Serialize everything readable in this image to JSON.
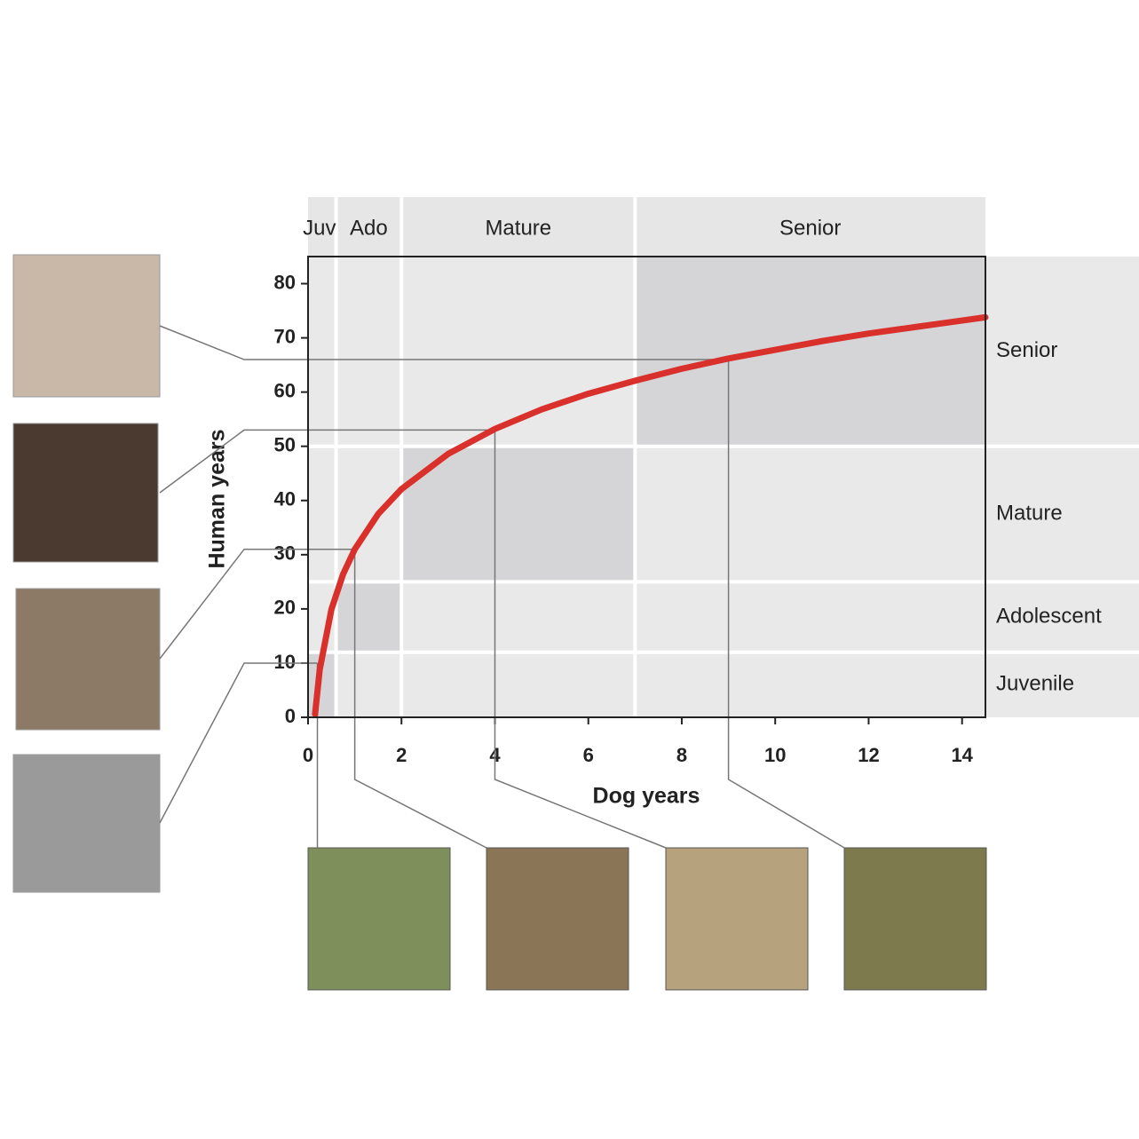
{
  "chart_data": {
    "type": "line",
    "x_label": "Dog years",
    "y_label": "Human years",
    "x": [
      0.15,
      0.25,
      0.5,
      0.75,
      1,
      1.5,
      2,
      3,
      4,
      5,
      6,
      7,
      8,
      9,
      10,
      11,
      12,
      13,
      14,
      14.5
    ],
    "series": [
      {
        "color": "#d9302c",
        "values": [
          0.6,
          8.8,
          19.9,
          26.4,
          31,
          37.5,
          42.1,
          48.6,
          53.2,
          56.8,
          59.7,
          62.1,
          64.3,
          66.2,
          67.8,
          69.4,
          70.8,
          72.0,
          73.2,
          73.8
        ]
      }
    ],
    "xlim": [
      0,
      14.5
    ],
    "ylim": [
      0,
      85
    ],
    "xticks": [
      0,
      2,
      4,
      6,
      8,
      10,
      12,
      14
    ],
    "yticks": [
      0,
      10,
      20,
      30,
      40,
      50,
      60,
      70,
      80
    ],
    "dog_stages": [
      {
        "label": "Juv",
        "range": [
          0,
          0.6
        ]
      },
      {
        "label": "Ado",
        "range": [
          0.6,
          2
        ]
      },
      {
        "label": "Mature",
        "range": [
          2,
          7
        ]
      },
      {
        "label": "Senior",
        "range": [
          7,
          14.5
        ]
      }
    ],
    "human_stages": [
      {
        "label": "Juvenile",
        "range": [
          0,
          12
        ]
      },
      {
        "label": "Adolescent",
        "range": [
          12,
          25
        ]
      },
      {
        "label": "Mature",
        "range": [
          25,
          50
        ]
      },
      {
        "label": "Senior",
        "range": [
          50,
          85
        ]
      }
    ],
    "guides": [
      {
        "x": 0.2,
        "y": 10
      },
      {
        "x": 1,
        "y": 31
      },
      {
        "x": 4,
        "y": 53
      },
      {
        "x": 9,
        "y": 66
      }
    ]
  }
}
